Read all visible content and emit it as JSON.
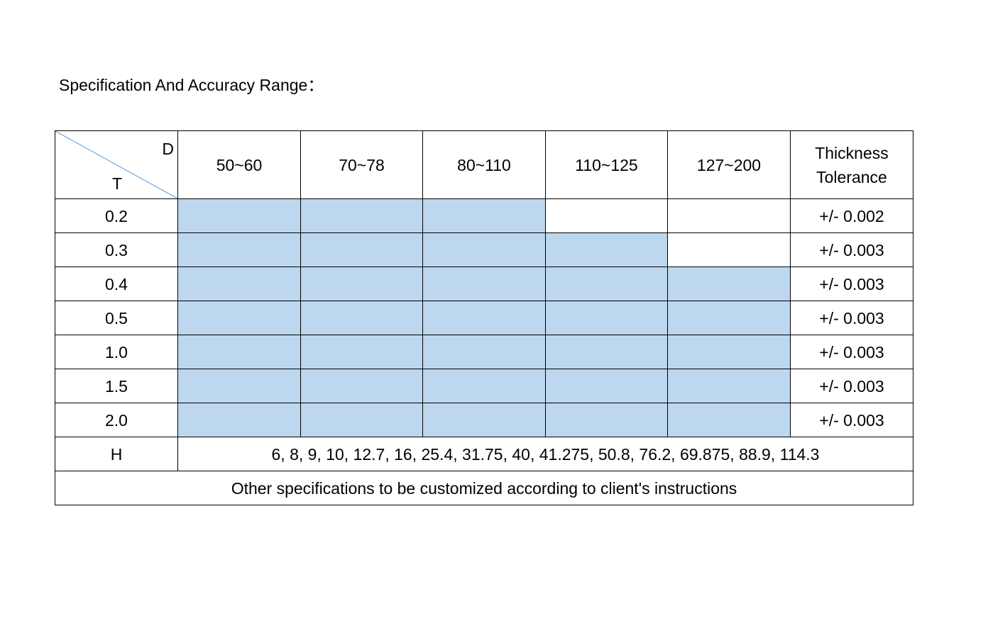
{
  "title": "Specification And Accuracy Range：",
  "table": {
    "corner_top": "D",
    "corner_bottom": "T",
    "diameter_ranges": [
      "50~60",
      "70~78",
      "80~110",
      "110~125",
      "127~200"
    ],
    "tolerance_header_line1": "Thickness",
    "tolerance_header_line2": "Tolerance",
    "rows": [
      {
        "thickness": "0.2",
        "available": [
          true,
          true,
          true,
          false,
          false
        ],
        "tolerance": "+/- 0.002"
      },
      {
        "thickness": "0.3",
        "available": [
          true,
          true,
          true,
          true,
          false
        ],
        "tolerance": "+/- 0.003"
      },
      {
        "thickness": "0.4",
        "available": [
          true,
          true,
          true,
          true,
          true
        ],
        "tolerance": "+/- 0.003"
      },
      {
        "thickness": "0.5",
        "available": [
          true,
          true,
          true,
          true,
          true
        ],
        "tolerance": "+/- 0.003"
      },
      {
        "thickness": "1.0",
        "available": [
          true,
          true,
          true,
          true,
          true
        ],
        "tolerance": "+/- 0.003"
      },
      {
        "thickness": "1.5",
        "available": [
          true,
          true,
          true,
          true,
          true
        ],
        "tolerance": "+/- 0.003"
      },
      {
        "thickness": "2.0",
        "available": [
          true,
          true,
          true,
          true,
          true
        ],
        "tolerance": "+/- 0.003"
      }
    ],
    "h_label": "H",
    "h_values": "6,  8,  9,  10,  12.7,  16,  25.4,  31.75,  40,  41.275,  50.8,  76.2,  69.875,  88.9,  114.3",
    "footer_note": "Other specifications to be customized according to client's instructions"
  },
  "colors": {
    "available_fill": "#bdd7ee",
    "diagonal_line": "#5b9bd5",
    "border": "#000000"
  }
}
